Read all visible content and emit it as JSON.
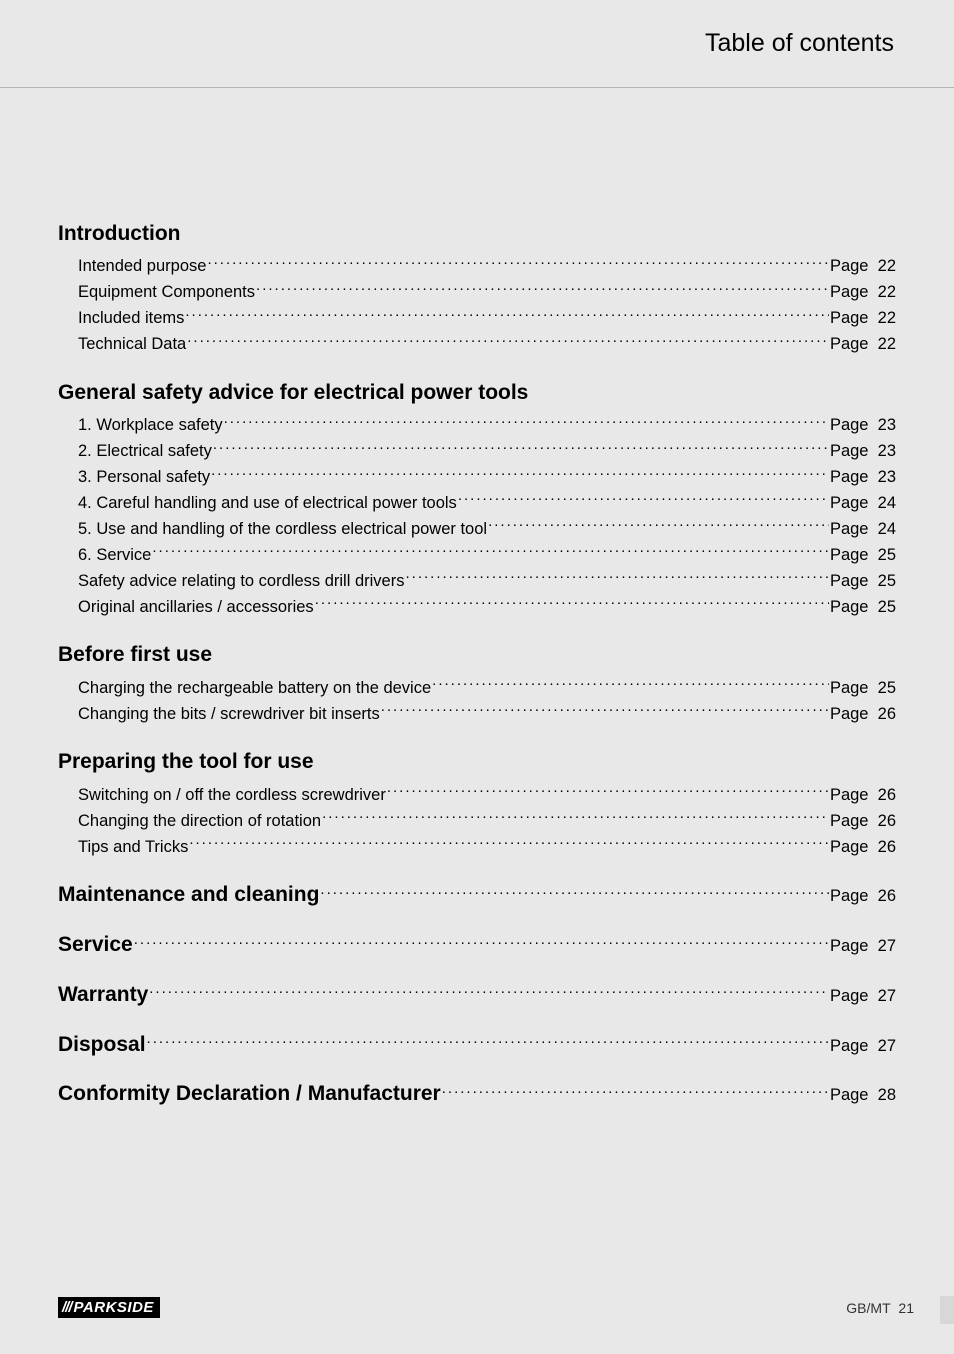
{
  "header": {
    "title": "Table of contents"
  },
  "page_label_prefix": "Page",
  "footer": {
    "brand_slashes": "///",
    "brand_name": "PARKSIDE",
    "region": "GB/MT",
    "page_number": "21"
  },
  "colors": {
    "background": "#e8e8e8",
    "text": "#000000",
    "divider": "#b5b5b5"
  },
  "sections": [
    {
      "title": "Introduction",
      "items": [
        {
          "label": "Intended purpose",
          "page": 22
        },
        {
          "label": "Equipment Components",
          "page": 22
        },
        {
          "label": "Included items",
          "page": 22
        },
        {
          "label": "Technical Data",
          "page": 22
        }
      ]
    },
    {
      "title": "General safety advice for electrical power tools",
      "items": [
        {
          "label": "1. Workplace safety",
          "page": 23
        },
        {
          "label": "2. Electrical safety",
          "page": 23
        },
        {
          "label": "3. Personal safety",
          "page": 23
        },
        {
          "label": "4. Careful handling and use of electrical power tools",
          "page": 24
        },
        {
          "label": "5. Use and handling of the cordless electrical power tool",
          "page": 24
        },
        {
          "label": "6. Service",
          "page": 25
        },
        {
          "label": "Safety advice relating to cordless drill drivers",
          "page": 25
        },
        {
          "label": "Original ancillaries / accessories",
          "page": 25
        }
      ]
    },
    {
      "title": "Before first use",
      "items": [
        {
          "label": "Charging the rechargeable battery on the device",
          "page": 25
        },
        {
          "label": "Changing the bits / screwdriver bit inserts",
          "page": 26
        }
      ]
    },
    {
      "title": "Preparing the tool for use",
      "items": [
        {
          "label": "Switching on / off the cordless screwdriver",
          "page": 26
        },
        {
          "label": "Changing the direction of rotation",
          "page": 26
        },
        {
          "label": "Tips and Tricks",
          "page": 26
        }
      ]
    }
  ],
  "top_level": [
    {
      "label": "Maintenance and cleaning",
      "page": 26
    },
    {
      "label": "Service",
      "page": 27
    },
    {
      "label": "Warranty",
      "page": 27
    },
    {
      "label": "Disposal",
      "page": 27
    },
    {
      "label": "Conformity Declaration / Manufacturer",
      "page": 28
    }
  ]
}
